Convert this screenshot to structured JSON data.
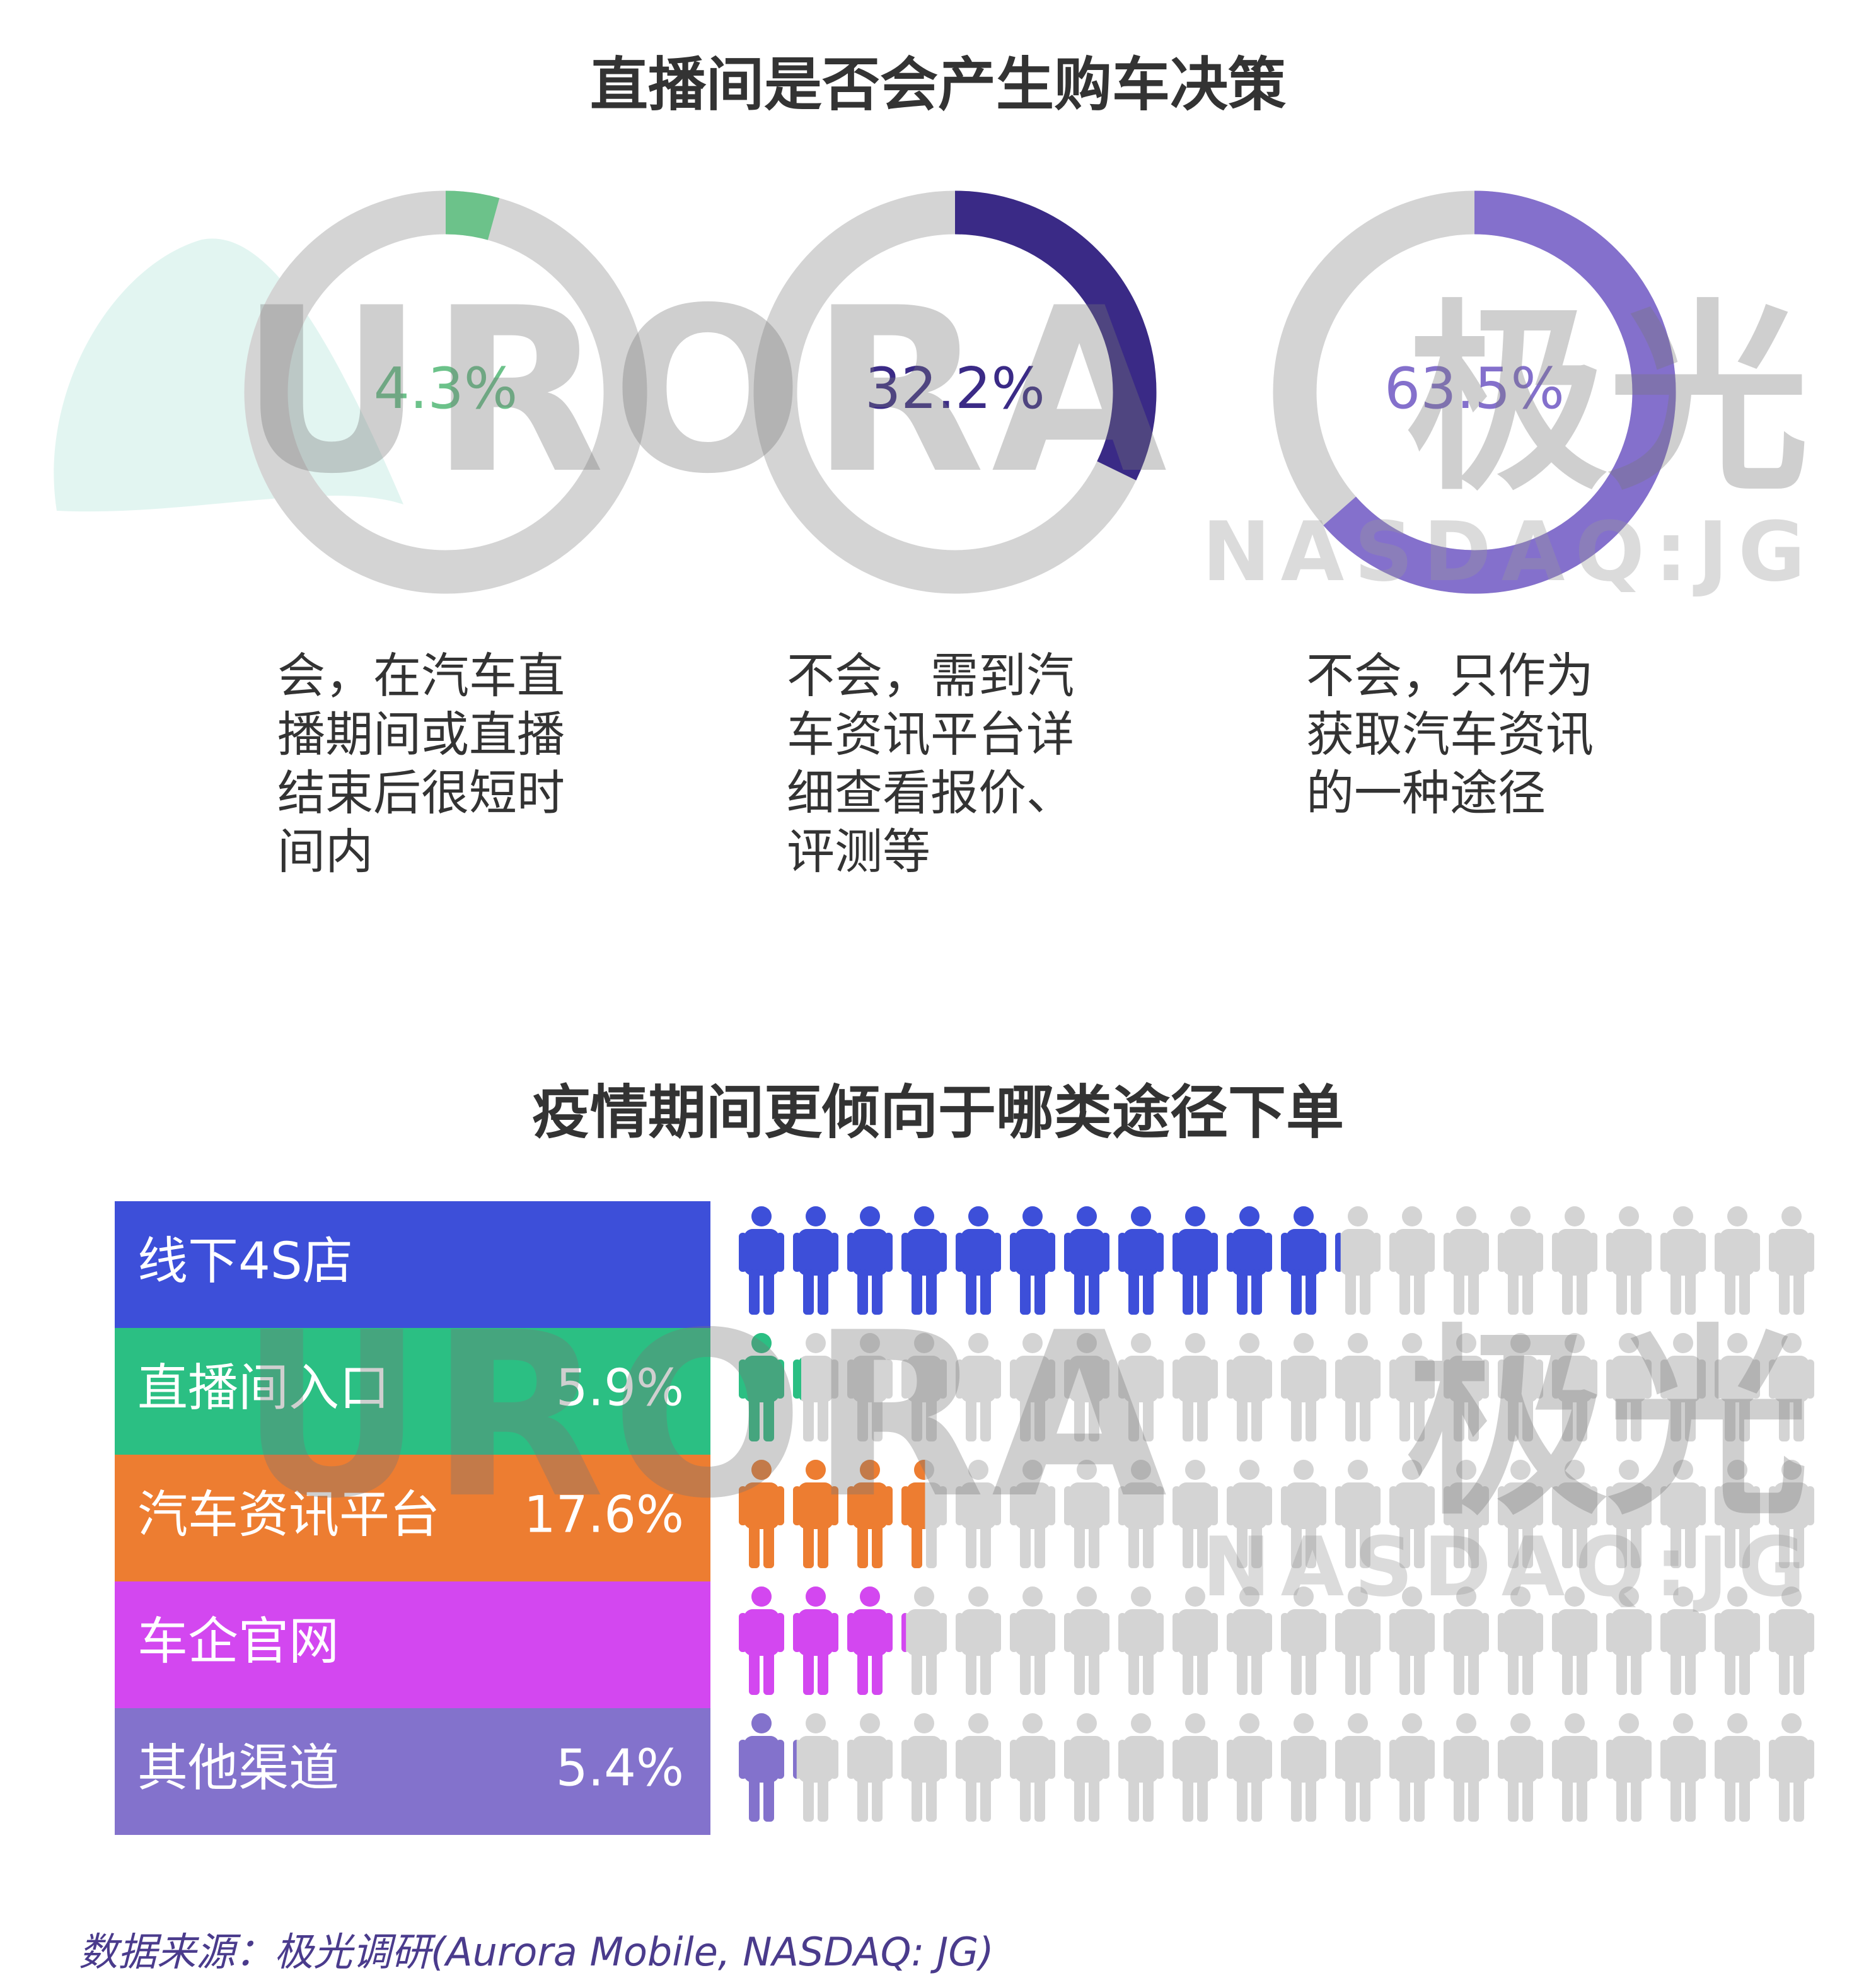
{
  "watermark": {
    "brand": "URORA",
    "brand_cn": "极光",
    "ticker": "NASDAQ:JG"
  },
  "chart_data": [
    {
      "type": "donut",
      "title": "直播间是否会产生购车决策",
      "categories": [
        "会，在汽车直播期间或直播结束后很短时间内",
        "不会，需到汽车资讯平台详细查看报价、评测等",
        "不会，只作为获取汽车资讯的一种途径"
      ],
      "values": [
        4.3,
        32.2,
        63.5
      ],
      "value_labels": [
        "4.3%",
        "32.2%",
        "63.5%"
      ],
      "colors": [
        "#6cc28a",
        "#3a2a86",
        "#8470cc"
      ],
      "track_color": "#d4d4d4"
    },
    {
      "type": "pictogram",
      "title": "疫情期间更倾向于哪类途径下单",
      "categories": [
        "线下4S店",
        "直播间入口",
        "汽车资讯平台",
        "车企官网",
        "其他渠道"
      ],
      "values": [
        55.6,
        5.9,
        17.6,
        15.5,
        5.4
      ],
      "value_labels": [
        null,
        "5.9%",
        "17.6%",
        null,
        "5.4%"
      ],
      "colors": [
        "#3d4fd9",
        "#2bbf83",
        "#ed7d31",
        "#d347f0",
        "#8372cc"
      ],
      "xlim": [
        0,
        100
      ],
      "icon_count": 20,
      "track_color": "#d4d4d4"
    }
  ],
  "source": "数据来源：极光调研(Aurora Mobile, NASDAQ: JG)"
}
